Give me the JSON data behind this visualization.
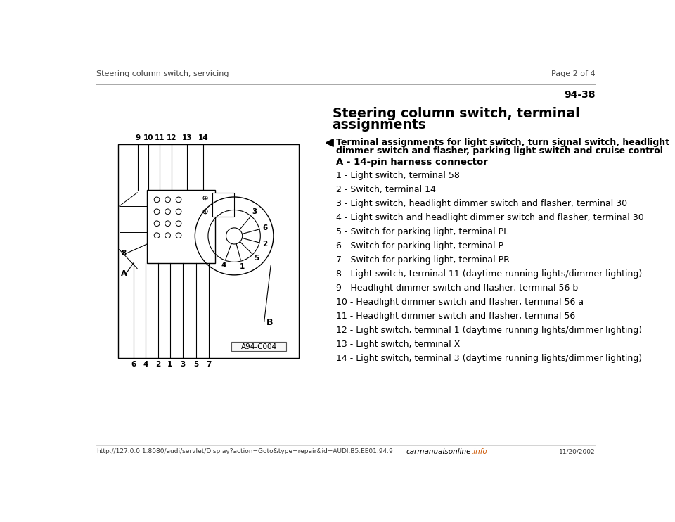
{
  "page_bg": "#ffffff",
  "header_left": "Steering column switch, servicing",
  "header_right": "Page 2 of 4",
  "page_number": "94-38",
  "title_line1": "Steering column switch, terminal",
  "title_line2": "assignments",
  "arrow_note_line1": "Terminal assignments for light switch, turn signal switch, headlight",
  "arrow_note_line2": "dimmer switch and flasher, parking light switch and cruise control",
  "connector_label": "A - 14-pin harness connector",
  "items": [
    "1 - Light switch, terminal 58",
    "2 - Switch, terminal 14",
    "3 - Light switch, headlight dimmer switch and flasher, terminal 30",
    "4 - Light switch and headlight dimmer switch and flasher, terminal 30",
    "5 - Switch for parking light, terminal PL",
    "6 - Switch for parking light, terminal P",
    "7 - Switch for parking light, terminal PR",
    "8 - Light switch, terminal 11 (daytime running lights/dimmer lighting)",
    "9 - Headlight dimmer switch and flasher, terminal 56 b",
    "10 - Headlight dimmer switch and flasher, terminal 56 a",
    "11 - Headlight dimmer switch and flasher, terminal 56",
    "12 - Light switch, terminal 1 (daytime running lights/dimmer lighting)",
    "13 - Light switch, terminal X",
    "14 - Light switch, terminal 3 (daytime running lights/dimmer lighting)"
  ],
  "footer_url": "http://127.0.0.1:8080/audi/servlet/Display?action=Goto&type=repair&id=AUDI.B5.EE01.94.9",
  "footer_right": "11/20/2002",
  "footer_logo": "carmanualsonline",
  "footer_logo2": ".info",
  "image_label": "A94-C004",
  "header_color": "#444444",
  "text_color": "#000000",
  "line_color": "#999999",
  "footer_url_color": "#333333",
  "footer_logo_color": "#cc5500"
}
